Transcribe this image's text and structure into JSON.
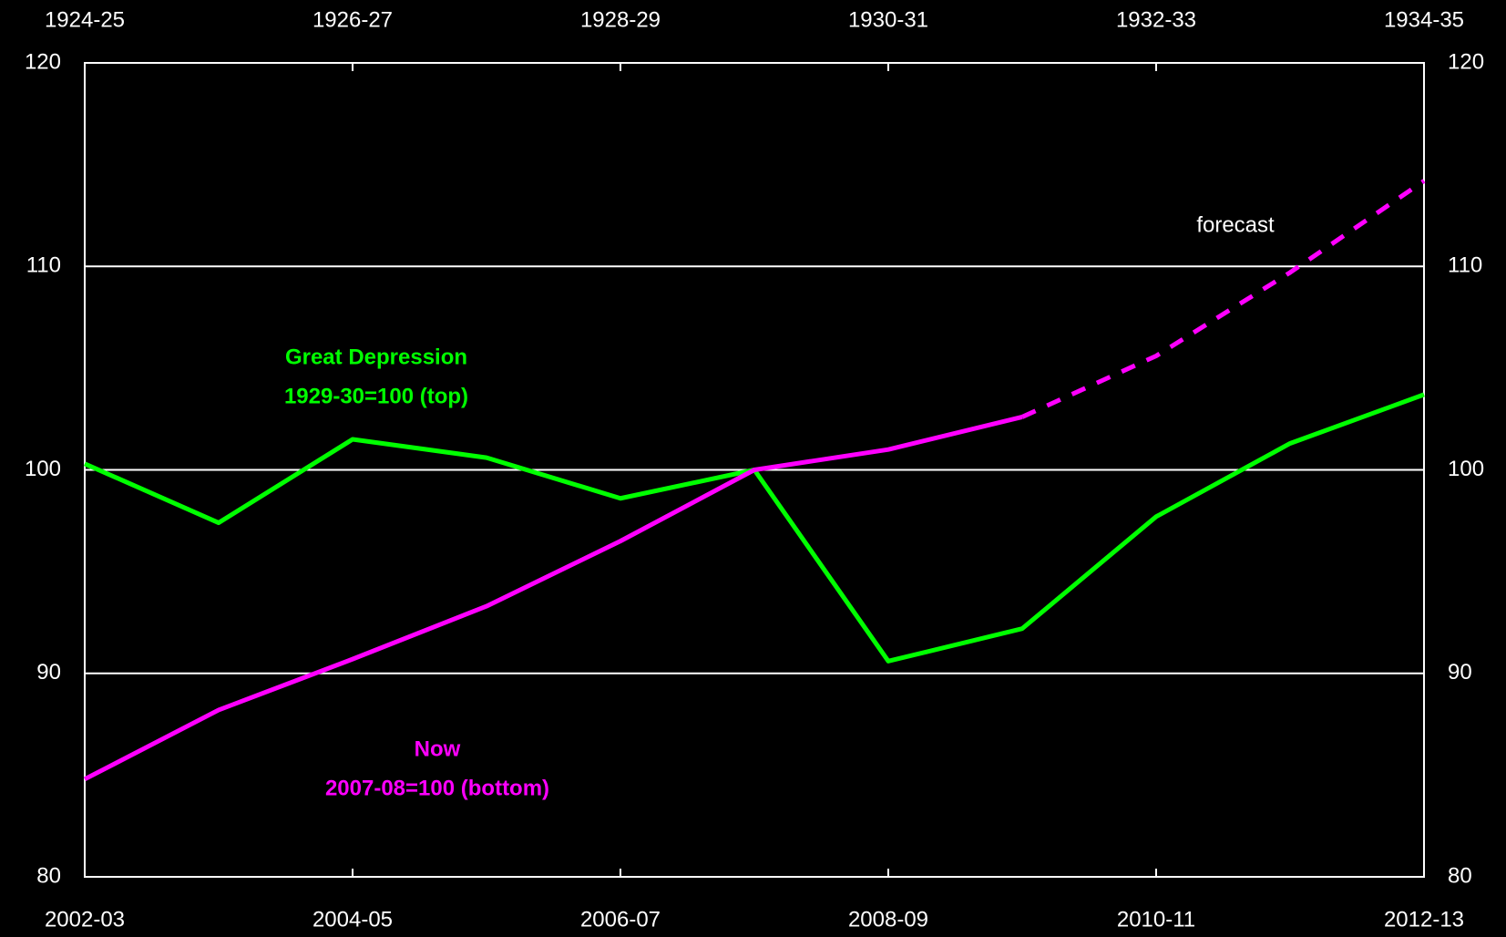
{
  "chart_data": {
    "type": "line",
    "categories": [
      "2002-03",
      null,
      "2004-05",
      null,
      "2006-07",
      null,
      "2008-09",
      null,
      "2010-11",
      null,
      "2012-13"
    ],
    "top_categories": [
      "1924-25",
      null,
      "1926-27",
      null,
      "1928-29",
      null,
      "1930-31",
      null,
      "1932-33",
      null,
      "1934-35"
    ],
    "series": [
      {
        "name": "Great Depression",
        "note": "1929-30=100 (top)",
        "color": "#00ff00",
        "values": [
          100.3,
          97.4,
          101.5,
          100.6,
          98.6,
          100,
          90.6,
          92.2,
          97.7,
          101.3,
          103.7
        ]
      },
      {
        "name": "Now",
        "note": "2007-08=100 (bottom)",
        "color": "#ff00ff",
        "values": [
          84.8,
          88.2,
          90.7,
          93.3,
          96.5,
          100,
          101.0,
          102.6,
          null,
          null,
          null
        ]
      },
      {
        "name": "forecast",
        "color": "#ff00ff",
        "dashed": true,
        "values": [
          null,
          null,
          null,
          null,
          null,
          null,
          null,
          102.6,
          105.6,
          109.7,
          114.2
        ]
      }
    ],
    "ylim": [
      80,
      120
    ],
    "yticks": [
      80,
      90,
      100,
      110,
      120
    ],
    "y2lim": [
      80,
      120
    ],
    "y2ticks": [
      80,
      90,
      100,
      110,
      120
    ],
    "grid": true
  }
}
